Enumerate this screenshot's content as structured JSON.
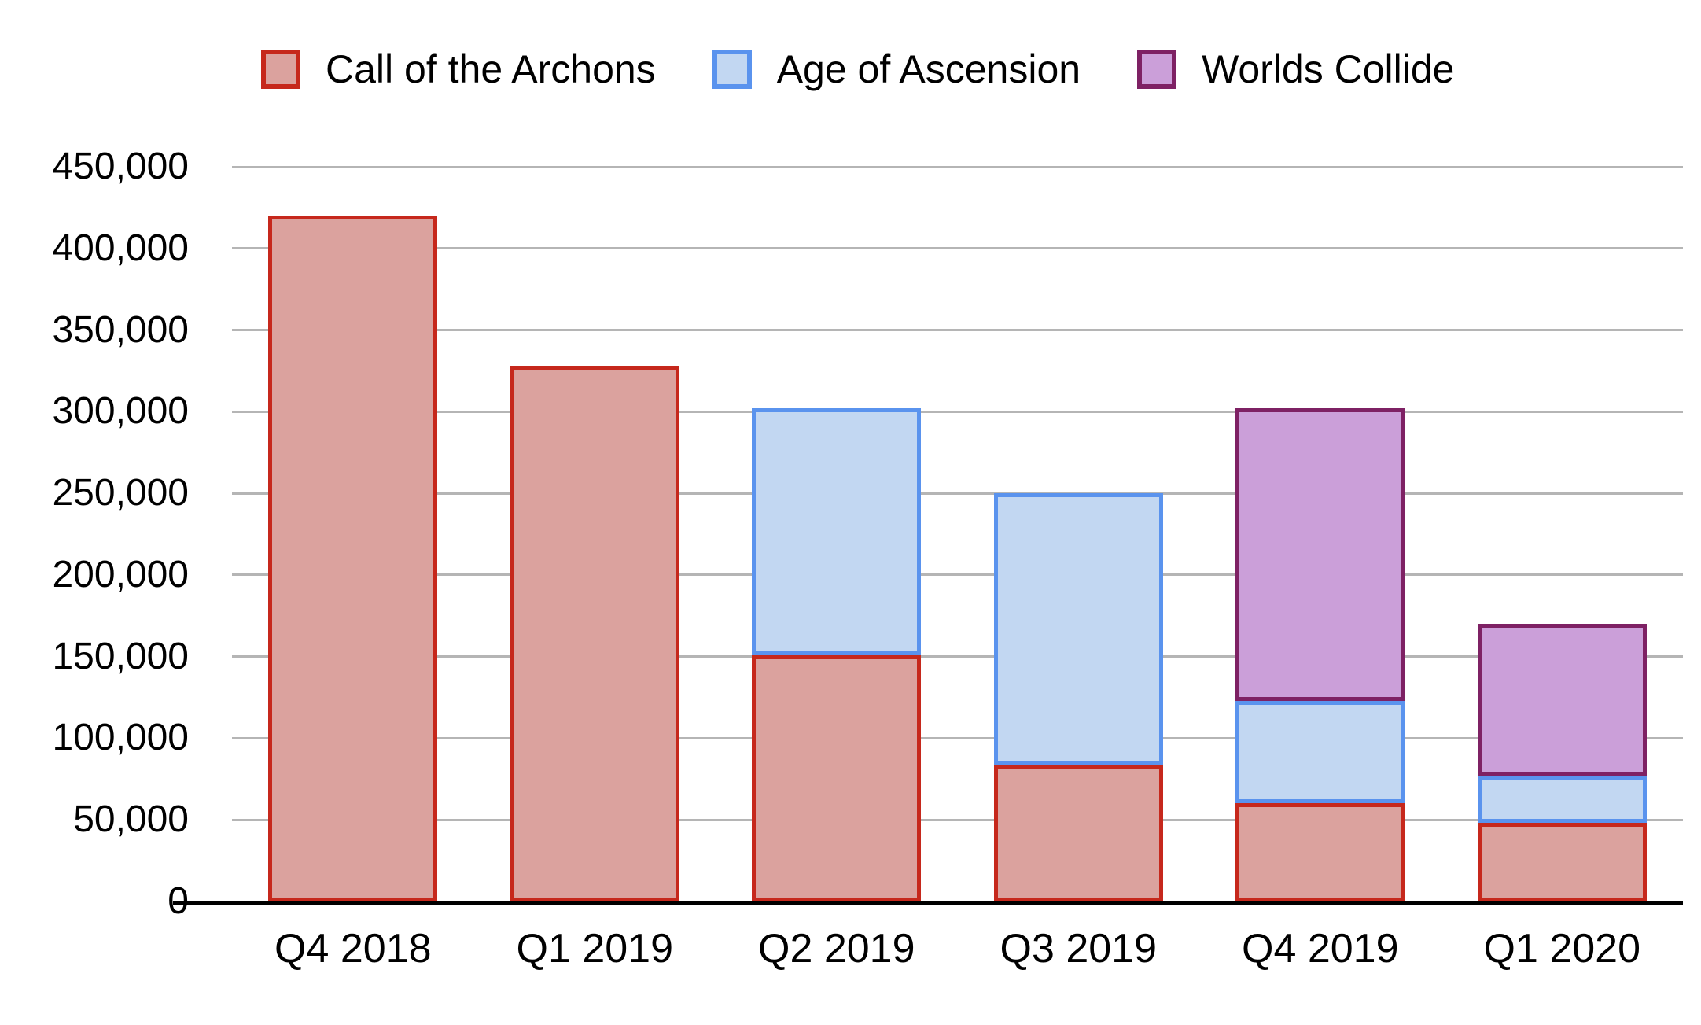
{
  "chart_data": {
    "type": "bar",
    "stacked": true,
    "categories": [
      "Q4 2018",
      "Q1 2019",
      "Q2 2019",
      "Q3 2019",
      "Q4 2019",
      "Q1 2020"
    ],
    "series": [
      {
        "name": "Call of the Archons",
        "fill": "#dba29e",
        "stroke": "#c6281c",
        "values": [
          420000,
          328000,
          151000,
          84000,
          60000,
          48000
        ]
      },
      {
        "name": "Age of Ascension",
        "fill": "#c2d7f2",
        "stroke": "#5a93ee",
        "values": [
          0,
          0,
          151000,
          166000,
          63000,
          29000
        ]
      },
      {
        "name": "Worlds Collide",
        "fill": "#cb9fd9",
        "stroke": "#7e2164",
        "values": [
          0,
          0,
          0,
          0,
          179000,
          93000
        ]
      }
    ],
    "stack_totals": [
      420000,
      328000,
      302000,
      250000,
      302000,
      170000
    ],
    "ylim": [
      0,
      450000
    ],
    "ytick_step": 50000,
    "ytick_labels": [
      "0",
      "50,000",
      "100,000",
      "150,000",
      "200,000",
      "250,000",
      "300,000",
      "350,000",
      "400,000",
      "450,000"
    ],
    "grid": true,
    "legend_position": "top"
  },
  "style": {
    "background": "#ffffff",
    "gridline_color": "#b5b5b5",
    "axis_color": "#000000",
    "text_color": "#000000"
  }
}
